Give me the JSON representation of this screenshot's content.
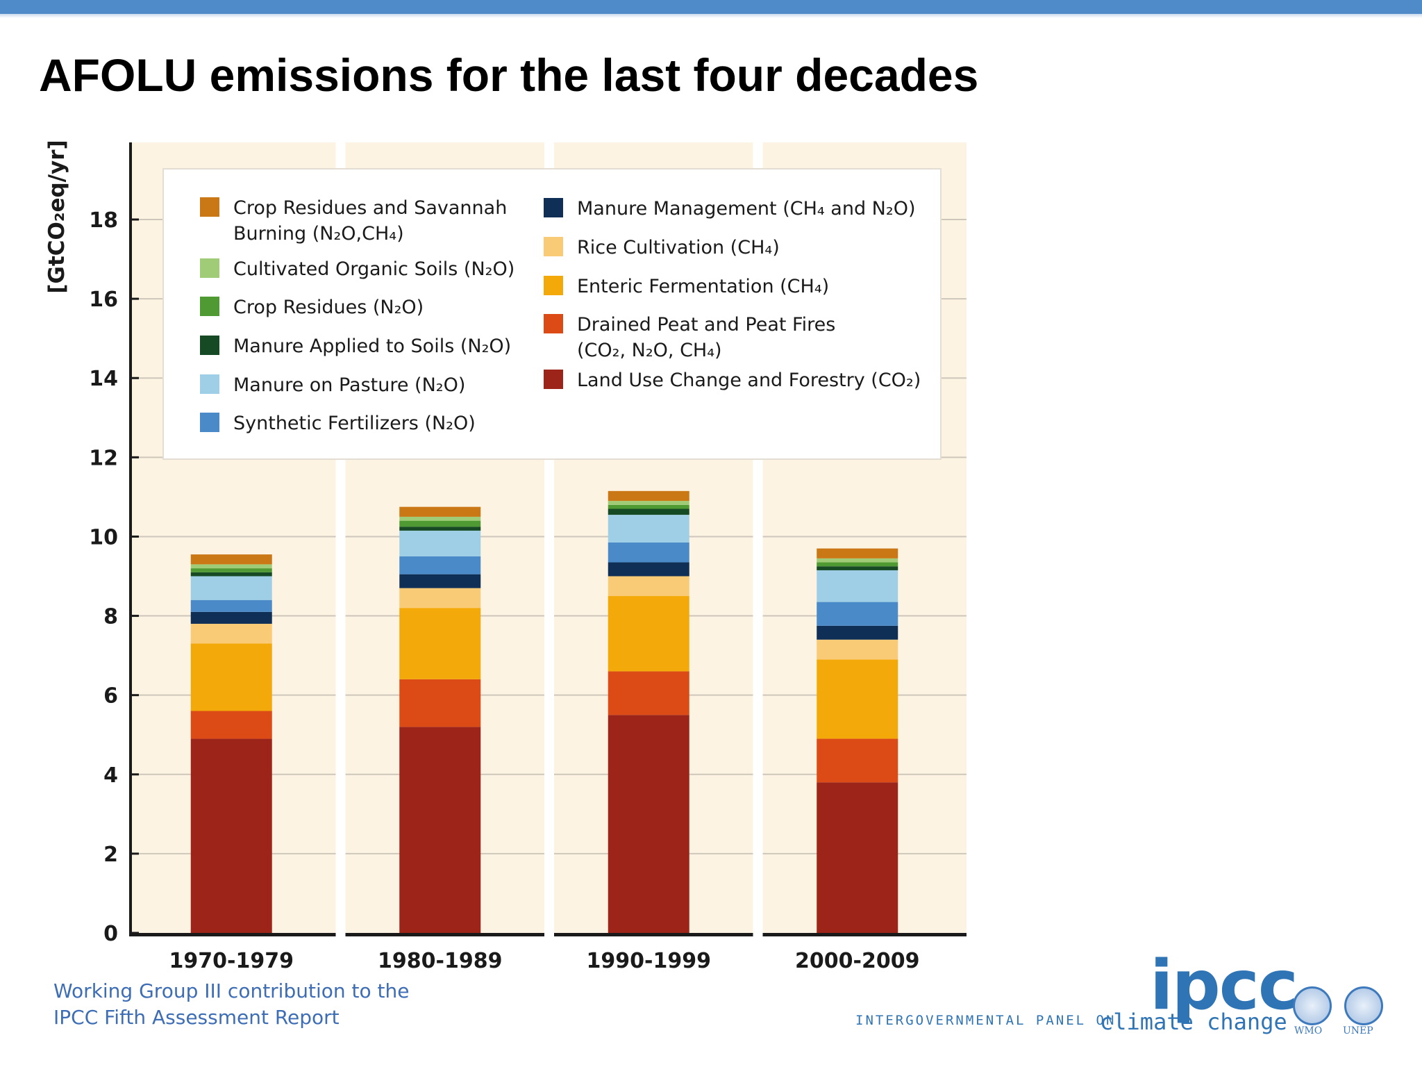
{
  "slide": {
    "title": "AFOLU emissions for the last four decades",
    "footer_line1": "Working Group III contribution to the",
    "footer_line2": "IPCC Fifth Assessment Report"
  },
  "logos": {
    "ipcc_mark": "ipcc",
    "ipcc_sub_left": "INTERGOVERNMENTAL PANEL ON",
    "ipcc_sub_right": "climate change",
    "wmo": "WMO",
    "unep": "UNEP"
  },
  "chart_data": {
    "type": "bar",
    "stacked": true,
    "ylabel": "[GtCO₂eq/yr]",
    "ylim": [
      0,
      20
    ],
    "yticks": [
      0,
      2,
      4,
      6,
      8,
      10,
      12,
      14,
      16,
      18
    ],
    "categories": [
      "1970-1979",
      "1980-1989",
      "1990-1999",
      "2000-2009"
    ],
    "grid": true,
    "legend_position": "top",
    "series": [
      {
        "name": "Land Use Change and Forestry (CO₂)",
        "color": "#9c2419",
        "values": [
          4.9,
          5.2,
          5.5,
          3.8
        ]
      },
      {
        "name": "Drained Peat and Peat Fires (CO₂, N₂O, CH₄)",
        "color": "#dc4b16",
        "values": [
          0.7,
          1.2,
          1.1,
          1.1
        ]
      },
      {
        "name": "Enteric Fermentation (CH₄)",
        "color": "#f4a90a",
        "values": [
          1.7,
          1.8,
          1.9,
          2.0
        ]
      },
      {
        "name": "Rice Cultivation (CH₄)",
        "color": "#f9cb76",
        "values": [
          0.5,
          0.5,
          0.5,
          0.5
        ]
      },
      {
        "name": "Manure Management (CH₄ and N₂O)",
        "color": "#0f2f56",
        "values": [
          0.3,
          0.35,
          0.35,
          0.35
        ]
      },
      {
        "name": "Synthetic Fertilizers (N₂O)",
        "color": "#4b8ac8",
        "values": [
          0.3,
          0.45,
          0.5,
          0.6
        ]
      },
      {
        "name": "Manure on Pasture (N₂O)",
        "color": "#9fcfe6",
        "values": [
          0.6,
          0.65,
          0.7,
          0.8
        ]
      },
      {
        "name": "Manure Applied to Soils (N₂O)",
        "color": "#154a24",
        "values": [
          0.1,
          0.1,
          0.15,
          0.1
        ]
      },
      {
        "name": "Crop Residues (N₂O)",
        "color": "#4f9a32",
        "values": [
          0.1,
          0.15,
          0.1,
          0.1
        ]
      },
      {
        "name": "Cultivated Organic Soils (N₂O)",
        "color": "#a0cc77",
        "values": [
          0.1,
          0.1,
          0.1,
          0.1
        ]
      },
      {
        "name": "Crop Residues and Savannah Burning (N₂O,CH₄)",
        "color": "#c97815",
        "values": [
          0.25,
          0.25,
          0.25,
          0.25
        ]
      }
    ],
    "legend_columns": [
      [
        "Crop Residues and Savannah Burning (N₂O,CH₄)",
        "Cultivated Organic Soils (N₂O)",
        "Crop Residues (N₂O)",
        "Manure Applied to Soils (N₂O)",
        "Manure on Pasture (N₂O)",
        "Synthetic Fertilizers (N₂O)"
      ],
      [
        "Manure Management (CH₄ and N₂O)",
        "Rice Cultivation (CH₄)",
        "Enteric Fermentation (CH₄)",
        "Drained Peat and Peat Fires (CO₂, N₂O, CH₄)",
        "Land Use Change and Forestry (CO₂)"
      ]
    ]
  }
}
